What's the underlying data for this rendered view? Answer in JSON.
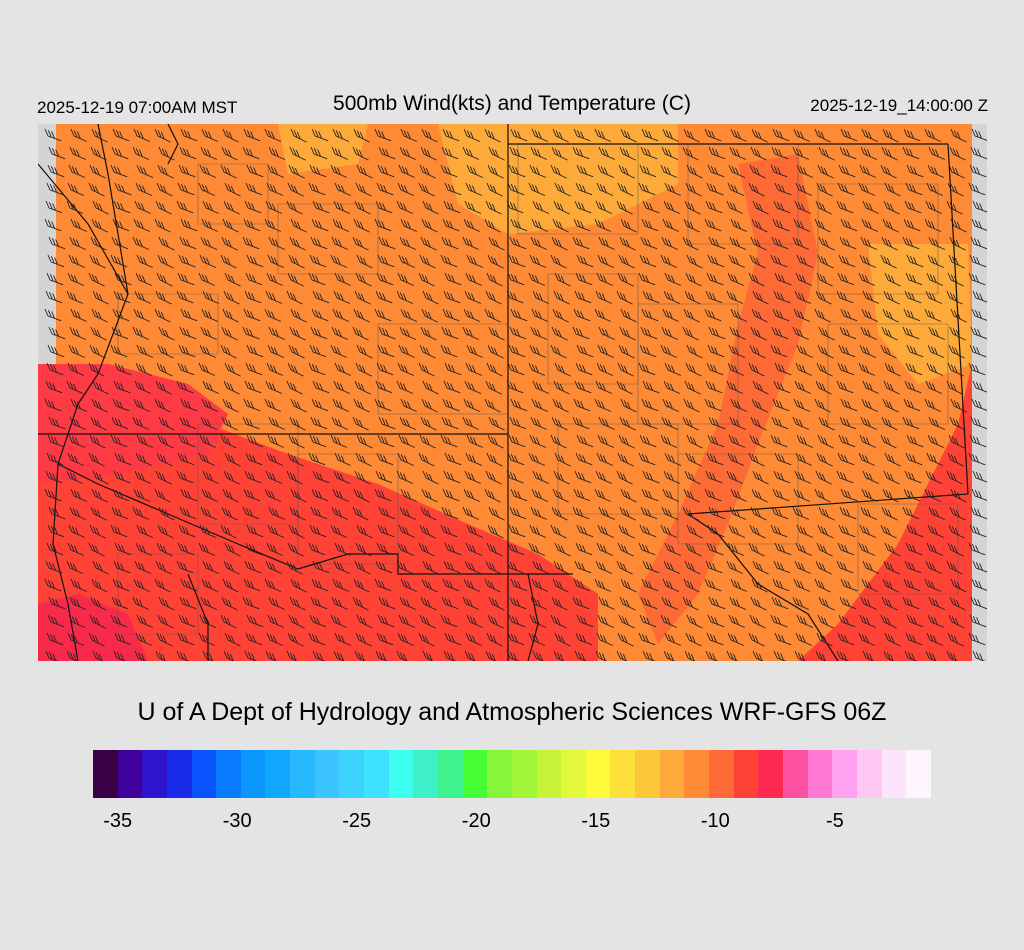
{
  "header": {
    "left": "2025-12-19 07:00AM MST",
    "title": "500mb Wind(kts) and Temperature (C)",
    "right": "2025-12-19_14:00:00 Z"
  },
  "credit": "U of A Dept of Hydrology and Atmospheric Sciences WRF-GFS 06Z",
  "map": {
    "fill_colors": {
      "warm_orange": "#fe8a35",
      "red": "#fe4236",
      "deep_red": "#f82a4a",
      "amber": "#fdaa3a",
      "missing": "#d4d4d4"
    },
    "barb_color": "#222222",
    "border_color": "#111111"
  },
  "colorbar": {
    "colors": [
      "#3a0046",
      "#40009a",
      "#2e14cc",
      "#1a2cea",
      "#0a52fe",
      "#0a7cfe",
      "#0a98fe",
      "#10a8fe",
      "#28b8fe",
      "#3cc4fe",
      "#3ed2fe",
      "#3ee2fe",
      "#3efef0",
      "#3ef0c8",
      "#3ef28c",
      "#46fe36",
      "#86f63a",
      "#a2f63a",
      "#c6f23a",
      "#e2f83a",
      "#fefa3a",
      "#fee03a",
      "#fcc83a",
      "#feaa3a",
      "#fe8a35",
      "#fe6a36",
      "#fe4236",
      "#fe2a52",
      "#fe52a2",
      "#fe7ad2",
      "#fea2f0",
      "#fec8f2",
      "#fee4fa",
      "#fef4fe"
    ],
    "tick_labels": [
      -35,
      -30,
      -25,
      -20,
      -15,
      -10,
      -5
    ]
  }
}
